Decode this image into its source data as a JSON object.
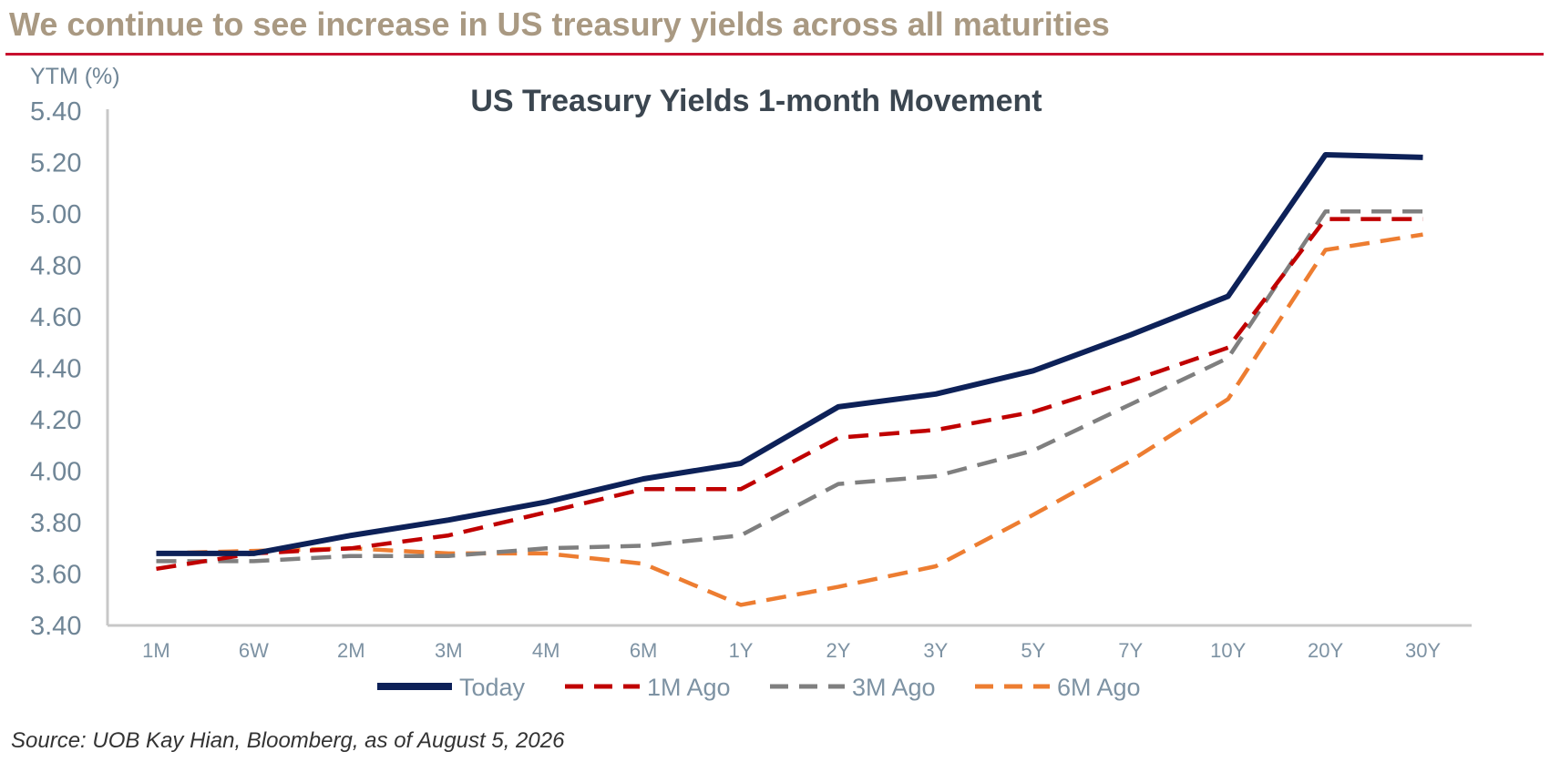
{
  "header": {
    "headline": "We continue to see increase in US treasury yields across all maturities"
  },
  "footer": {
    "source": "Source: UOB Kay Hian, Bloomberg, as of August 5, 2026"
  },
  "chart_data": {
    "type": "line",
    "title": "US Treasury Yields 1-month Movement",
    "ylabel": "YTM (%)",
    "xlabel": "",
    "categories": [
      "1M",
      "6W",
      "2M",
      "3M",
      "4M",
      "6M",
      "1Y",
      "2Y",
      "3Y",
      "5Y",
      "7Y",
      "10Y",
      "20Y",
      "30Y"
    ],
    "ylim": [
      3.4,
      5.4
    ],
    "yticks": [
      "3.40",
      "3.60",
      "3.80",
      "4.00",
      "4.20",
      "4.40",
      "4.60",
      "4.80",
      "5.00",
      "5.20",
      "5.40"
    ],
    "legend_position": "bottom",
    "grid": false,
    "series": [
      {
        "name": "Today",
        "color": "#0d2158",
        "style": "solid",
        "values": [
          3.68,
          3.68,
          3.75,
          3.81,
          3.88,
          3.97,
          4.03,
          4.25,
          4.3,
          4.39,
          4.53,
          4.68,
          5.23,
          5.22
        ]
      },
      {
        "name": "1M Ago",
        "color": "#c00000",
        "style": "dashed",
        "values": [
          3.62,
          3.68,
          3.7,
          3.75,
          3.84,
          3.93,
          3.93,
          4.13,
          4.16,
          4.23,
          4.35,
          4.48,
          4.98,
          4.98
        ]
      },
      {
        "name": "3M Ago",
        "color": "#7f7f7f",
        "style": "dashed",
        "values": [
          3.65,
          3.65,
          3.67,
          3.67,
          3.7,
          3.71,
          3.75,
          3.95,
          3.98,
          4.08,
          4.26,
          4.44,
          5.01,
          5.01
        ]
      },
      {
        "name": "6M Ago",
        "color": "#ed7d31",
        "style": "dashed",
        "values": [
          3.68,
          3.69,
          3.7,
          3.68,
          3.68,
          3.64,
          3.48,
          3.55,
          3.63,
          3.83,
          4.04,
          4.28,
          4.86,
          4.92
        ]
      }
    ]
  }
}
